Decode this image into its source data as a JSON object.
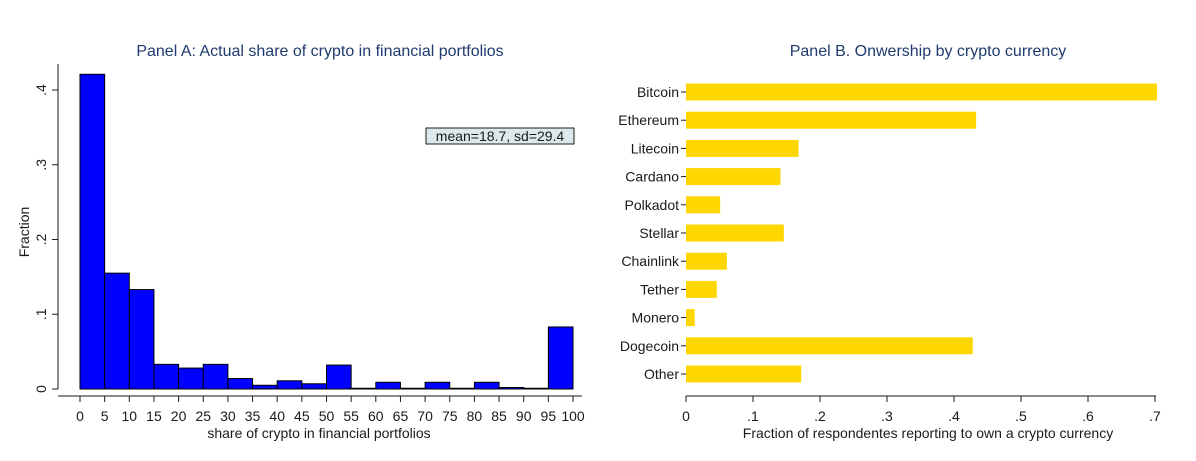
{
  "chart_data": [
    {
      "type": "bar",
      "title": "Panel A: Actual share of crypto in financial portfolios",
      "xlabel": "share of crypto in financial portfolios",
      "ylabel": "Fraction",
      "xlim": [
        0,
        100
      ],
      "ylim": [
        0,
        0.43
      ],
      "bin_width": 5,
      "x_ticks": [
        "0",
        "5",
        "10",
        "15",
        "20",
        "25",
        "30",
        "35",
        "40",
        "45",
        "50",
        "55",
        "60",
        "65",
        "70",
        "75",
        "80",
        "85",
        "90",
        "95",
        "100"
      ],
      "y_ticks": [
        "0",
        ".1",
        ".2",
        ".3",
        ".4"
      ],
      "y_tick_values": [
        0,
        0.1,
        0.2,
        0.3,
        0.4
      ],
      "bins": [
        {
          "start": 0,
          "end": 5,
          "value": 0.421
        },
        {
          "start": 5,
          "end": 10,
          "value": 0.155
        },
        {
          "start": 10,
          "end": 15,
          "value": 0.133
        },
        {
          "start": 15,
          "end": 20,
          "value": 0.033
        },
        {
          "start": 20,
          "end": 25,
          "value": 0.028
        },
        {
          "start": 25,
          "end": 30,
          "value": 0.033
        },
        {
          "start": 30,
          "end": 35,
          "value": 0.014
        },
        {
          "start": 35,
          "end": 40,
          "value": 0.005
        },
        {
          "start": 40,
          "end": 45,
          "value": 0.011
        },
        {
          "start": 45,
          "end": 50,
          "value": 0.007
        },
        {
          "start": 50,
          "end": 55,
          "value": 0.032
        },
        {
          "start": 55,
          "end": 60,
          "value": 0.001
        },
        {
          "start": 60,
          "end": 65,
          "value": 0.009
        },
        {
          "start": 65,
          "end": 70,
          "value": 0.001
        },
        {
          "start": 70,
          "end": 75,
          "value": 0.009
        },
        {
          "start": 75,
          "end": 80,
          "value": 0.001
        },
        {
          "start": 80,
          "end": 85,
          "value": 0.009
        },
        {
          "start": 85,
          "end": 90,
          "value": 0.002
        },
        {
          "start": 90,
          "end": 95,
          "value": 0.001
        },
        {
          "start": 95,
          "end": 100,
          "value": 0.083
        }
      ],
      "annotation": "mean=18.7, sd=29.4",
      "bar_color": "#0000ff",
      "grid": false
    },
    {
      "type": "bar",
      "orientation": "horizontal",
      "title": "Panel B. Onwership by crypto currency",
      "xlabel": "Fraction of respondentes reporting to own a crypto currency",
      "ylabel": "",
      "xlim": [
        0,
        0.7
      ],
      "x_ticks": [
        "0",
        ".1",
        ".2",
        ".3",
        ".4",
        ".5",
        ".6",
        ".7"
      ],
      "x_tick_values": [
        0,
        0.1,
        0.2,
        0.3,
        0.4,
        0.5,
        0.6,
        0.7
      ],
      "categories": [
        "Bitcoin",
        "Ethereum",
        "Litecoin",
        "Cardano",
        "Polkadot",
        "Stellar",
        "Chainlink",
        "Tether",
        "Monero",
        "Dogecoin",
        "Other"
      ],
      "values": [
        0.703,
        0.433,
        0.168,
        0.141,
        0.051,
        0.146,
        0.061,
        0.046,
        0.013,
        0.428,
        0.172
      ],
      "bar_color": "#ffd700",
      "grid": false
    }
  ]
}
